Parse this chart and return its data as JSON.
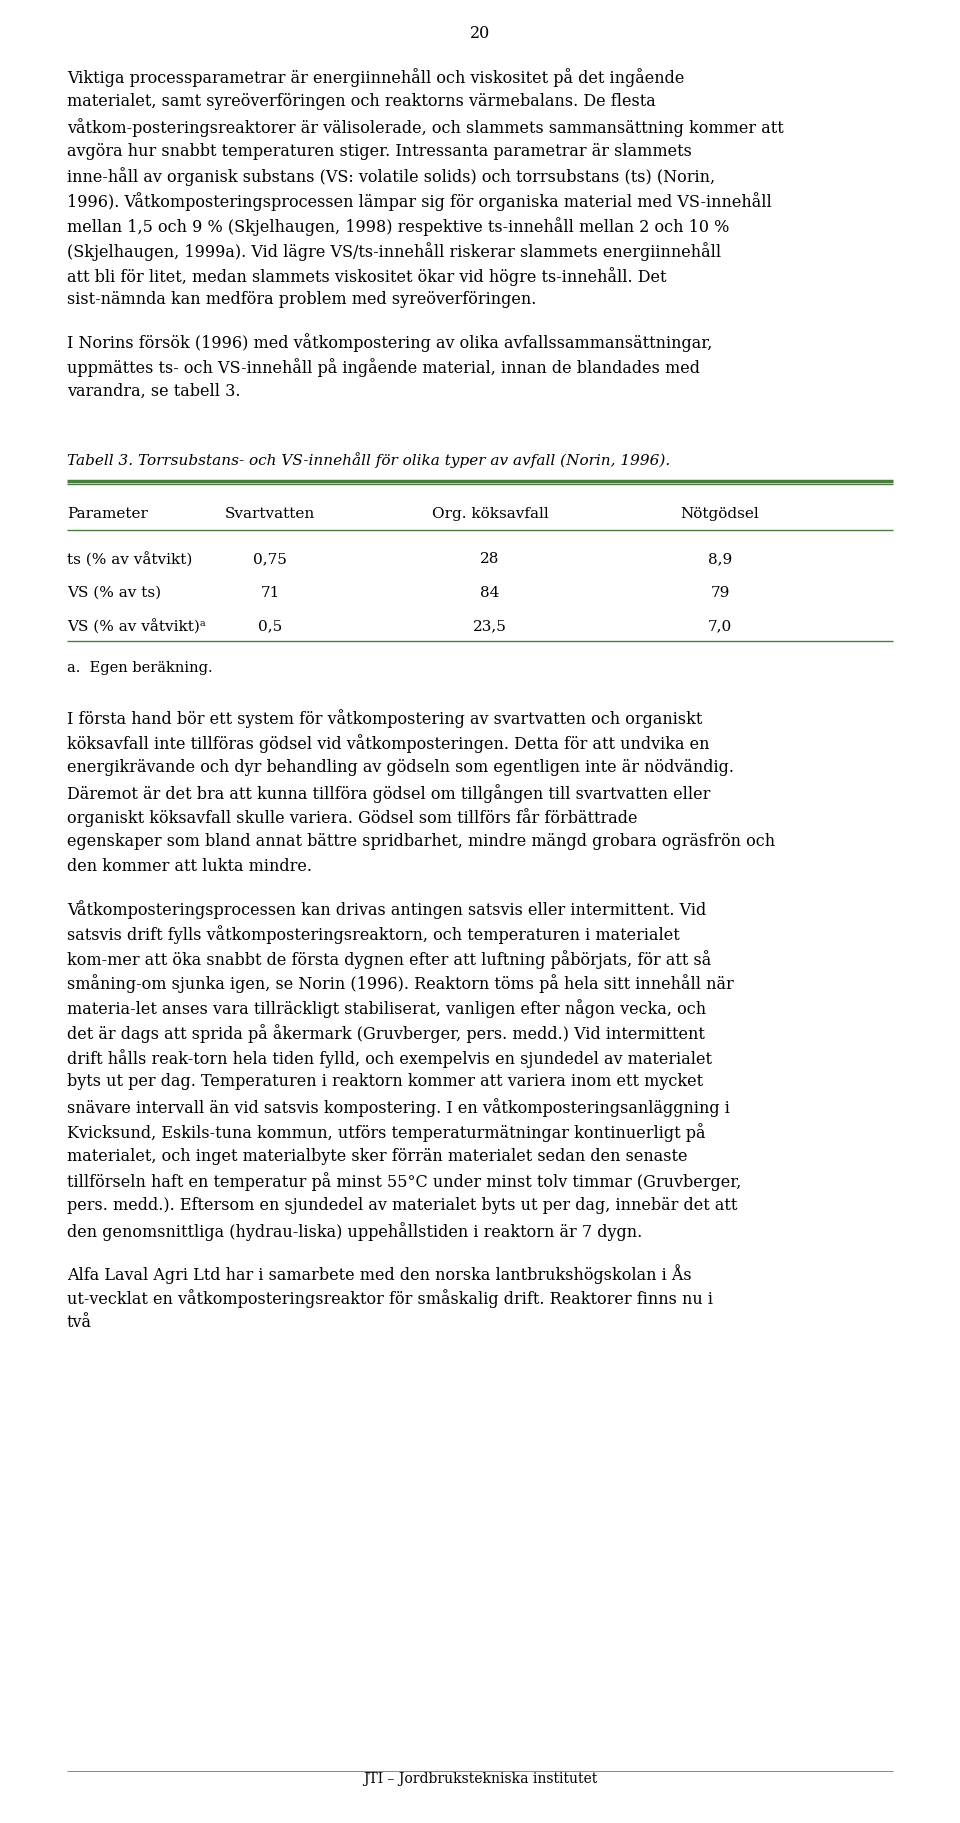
{
  "page_number": "20",
  "bg_color": "#ffffff",
  "text_color": "#000000",
  "font_size_body": 11.5,
  "font_size_table_caption": 11.0,
  "font_size_table": 11.0,
  "font_size_footer": 10.0,
  "table_line_color": "#4a7c3f",
  "paragraphs": [
    "Viktiga processparametrar är energiinnehåll och viskositet på det ingående materialet, samt syreöverföringen och reaktorns värmebalans. De flesta våtkom-posteringsreaktorer är välisolerade, och slammets sammansättning kommer att avgöra hur snabbt temperaturen stiger. Intressanta parametrar är slammets inne-håll av organisk substans (VS: volatile solids) och torrsubstans (ts) (Norin, 1996). Våtkomposteringsprocessen lämpar sig för organiska material med VS-innehåll mellan 1,5 och 9 % (Skjelhaugen, 1998) respektive ts-innehåll mellan 2 och 10 % (Skjelhaugen, 1999a). Vid lägre VS/ts-innehåll riskerar slammets energiinnehåll att bli för litet, medan slammets viskositet ökar vid högre ts-innehåll. Det sist-nämnda kan medföra problem med syreöverföringen.",
    "I Norins försök (1996) med våtkompostering av olika avfallssammansättningar, uppmättes ts- och VS-innehåll på ingående material, innan de blandades med varandra, se tabell 3.",
    "I första hand bör ett system för våtkompostering av svartvatten och organiskt köksavfall inte tillföras gödsel vid våtkomposteringen. Detta för att undvika en energikrävande och dyr behandling av gödseln som egentligen inte är nödvändig. Däremot är det bra att kunna tillföra gödsel om tillgången till svartvatten eller organiskt köksavfall skulle variera. Gödsel som tillförs får förbättrade egenskaper som bland annat bättre spridbarhet, mindre mängd grobara ogräsfrön och den kommer att lukta mindre.",
    "Våtkomposteringsprocessen kan drivas antingen satsvis eller intermittent. Vid satsvis drift fylls våtkomposteringsreaktorn, och temperaturen i materialet kom-mer att öka snabbt de första dygnen efter att luftning påbörjats, för att så småning-om sjunka igen, se Norin (1996). Reaktorn töms på hela sitt innehåll när materia-let anses vara tillräckligt stabiliserat, vanligen efter någon vecka, och det är dags att sprida på åkermark (Gruvberger, pers. medd.) Vid intermittent drift hålls reak-torn hela tiden fylld, och exempelvis en sjundedel av materialet byts ut per dag. Temperaturen i reaktorn kommer att variera inom ett mycket snävare intervall än vid satsvis kompostering. I en våtkomposteringsanläggning i Kvicksund, Eskils-tuna kommun, utförs temperaturmätningar kontinuerligt på materialet, och inget materialbyte sker förrän materialet sedan den senaste tillförseln haft en temperatur på minst 55°C under minst tolv timmar (Gruvberger, pers. medd.). Eftersom en sjundedel av materialet byts ut per dag, innebär det att den genomsnittliga (hydrau-liska) uppehållstiden i reaktorn är 7 dygn.",
    "Alfa Laval Agri Ltd har i samarbete med den norska lantbrukshögskolan i Ås ut-vecklat en våtkomposteringsreaktor för småskalig drift. Reaktorer finns nu i två"
  ],
  "table_caption": "Tabell 3. Torrsubstans- och VS-innehåll för olika typer av avfall (Norin, 1996).",
  "table_headers": [
    "Parameter",
    "Svartvatten",
    "Org. köksavfall",
    "Nötgödsel"
  ],
  "table_rows": [
    [
      "ts (% av våtvikt)",
      "0,75",
      "28",
      "8,9"
    ],
    [
      "VS (% av ts)",
      "71",
      "84",
      "79"
    ],
    [
      "VS (% av våtvikt)ᵃ",
      "0,5",
      "23,5",
      "7,0"
    ]
  ],
  "table_footnote": "a.  Egen beräkning.",
  "footer_text": "JTI – Jordbrukstekniska institutet"
}
